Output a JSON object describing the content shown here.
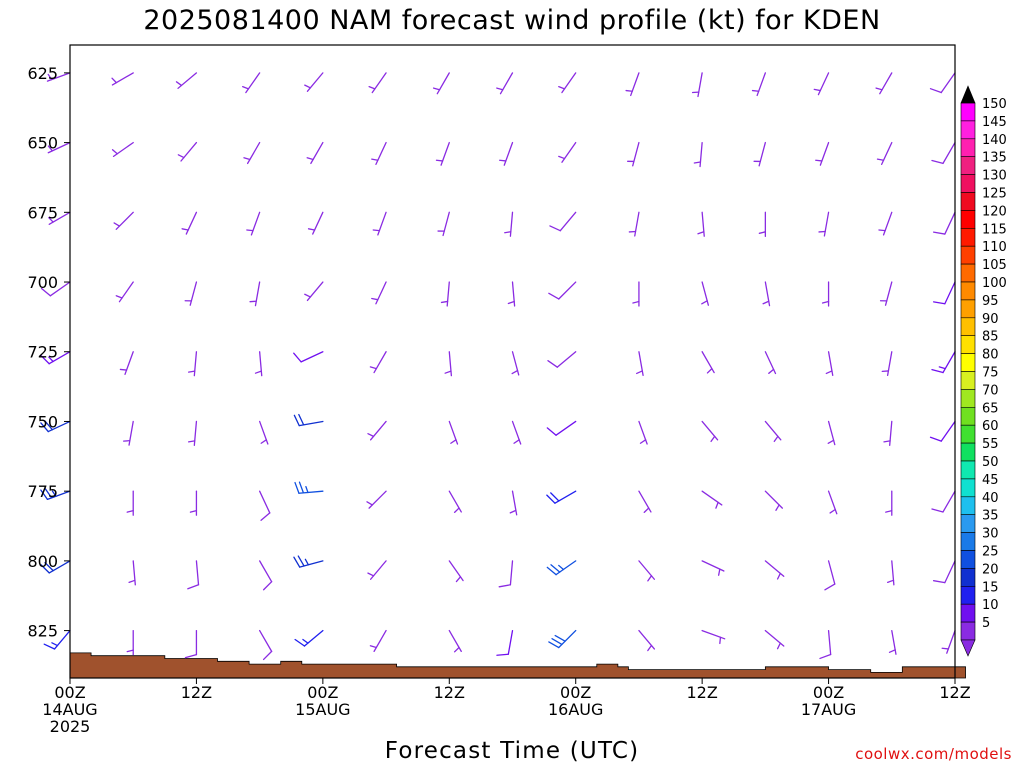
{
  "chart_data": {
    "type": "wind-barb-timeseries",
    "title": "2025081400 NAM forecast wind profile (kt) for KDEN",
    "xlabel": "Forecast Time (UTC)",
    "credit": "coolwx.com/models",
    "y_axis": {
      "units": "hPa",
      "range": [
        615,
        842
      ],
      "inverted": true,
      "ticks": [
        625,
        650,
        675,
        700,
        725,
        750,
        775,
        800,
        825
      ]
    },
    "x_axis": {
      "range": [
        0,
        84
      ],
      "unit": "forecast hour",
      "ticks": [
        {
          "hour": 0,
          "line1": "00Z",
          "line2": "14AUG",
          "line3": "2025"
        },
        {
          "hour": 12,
          "line1": "12Z",
          "line2": "",
          "line3": ""
        },
        {
          "hour": 24,
          "line1": "00Z",
          "line2": "15AUG",
          "line3": ""
        },
        {
          "hour": 36,
          "line1": "12Z",
          "line2": "",
          "line3": ""
        },
        {
          "hour": 48,
          "line1": "00Z",
          "line2": "16AUG",
          "line3": ""
        },
        {
          "hour": 60,
          "line1": "12Z",
          "line2": "",
          "line3": ""
        },
        {
          "hour": 72,
          "line1": "00Z",
          "line2": "17AUG",
          "line3": ""
        },
        {
          "hour": 84,
          "line1": "12Z",
          "line2": "",
          "line3": ""
        }
      ]
    },
    "color_scale": {
      "units": "kt",
      "levels": [
        5,
        10,
        15,
        20,
        25,
        30,
        35,
        40,
        45,
        50,
        55,
        60,
        65,
        70,
        75,
        80,
        85,
        90,
        95,
        100,
        105,
        110,
        115,
        120,
        125,
        130,
        135,
        140,
        145,
        150
      ],
      "colors": [
        "#8a2be2",
        "#7010f0",
        "#2020f0",
        "#1030d0",
        "#1050e0",
        "#1a7ae8",
        "#2a9af0",
        "#1ec0ee",
        "#10e0d0",
        "#10e8b0",
        "#10e060",
        "#40e030",
        "#70e020",
        "#a0e820",
        "#d8f020",
        "#ffff00",
        "#ffe000",
        "#ffc000",
        "#ffa000",
        "#ff8a00",
        "#ff6a00",
        "#ff4000",
        "#ff1a00",
        "#ff0000",
        "#f00a20",
        "#f01060",
        "#f02080",
        "#ff20b0",
        "#ff20e0",
        "#ff00ff"
      ]
    },
    "terrain": {
      "color": "#a0522d",
      "surface_pressure_hpa": [
        833,
        833,
        834,
        834,
        834,
        834,
        834,
        834,
        834,
        835,
        835,
        835,
        835,
        835,
        836,
        836,
        836,
        837,
        837,
        837,
        836,
        836,
        837,
        837,
        837,
        837,
        837,
        837,
        837,
        837,
        837,
        838,
        838,
        838,
        838,
        838,
        838,
        838,
        838,
        838,
        838,
        838,
        838,
        838,
        838,
        838,
        838,
        838,
        838,
        838,
        837,
        837,
        838,
        839,
        839,
        839,
        839,
        839,
        839,
        839,
        839,
        839,
        839,
        839,
        839,
        839,
        838,
        838,
        838,
        838,
        838,
        838,
        839,
        839,
        839,
        839,
        840,
        840,
        840,
        838,
        838,
        838,
        838,
        838,
        838
      ]
    },
    "wind_series": [
      {
        "hour": 0,
        "levels": [
          [
            625,
            250,
            7
          ],
          [
            650,
            245,
            7
          ],
          [
            675,
            240,
            7
          ],
          [
            700,
            235,
            9
          ],
          [
            725,
            240,
            13
          ],
          [
            750,
            245,
            22
          ],
          [
            775,
            250,
            23
          ],
          [
            800,
            240,
            22
          ],
          [
            825,
            220,
            15
          ]
        ]
      },
      {
        "hour": 6,
        "levels": [
          [
            625,
            240,
            7
          ],
          [
            650,
            235,
            7
          ],
          [
            675,
            225,
            7
          ],
          [
            700,
            215,
            7
          ],
          [
            725,
            200,
            6
          ],
          [
            750,
            190,
            5
          ],
          [
            775,
            180,
            5
          ],
          [
            800,
            175,
            5
          ],
          [
            825,
            180,
            5
          ]
        ]
      },
      {
        "hour": 12,
        "levels": [
          [
            625,
            230,
            6
          ],
          [
            650,
            220,
            6
          ],
          [
            675,
            205,
            6
          ],
          [
            700,
            195,
            6
          ],
          [
            725,
            185,
            6
          ],
          [
            750,
            185,
            6
          ],
          [
            775,
            180,
            7
          ],
          [
            800,
            175,
            8
          ],
          [
            825,
            180,
            8
          ]
        ]
      },
      {
        "hour": 18,
        "levels": [
          [
            625,
            215,
            6
          ],
          [
            650,
            210,
            6
          ],
          [
            675,
            200,
            6
          ],
          [
            700,
            190,
            6
          ],
          [
            725,
            175,
            6
          ],
          [
            750,
            160,
            7
          ],
          [
            775,
            155,
            8
          ],
          [
            800,
            150,
            9
          ],
          [
            825,
            150,
            9
          ]
        ]
      },
      {
        "hour": 24,
        "levels": [
          [
            625,
            220,
            6
          ],
          [
            650,
            210,
            6
          ],
          [
            675,
            205,
            6
          ],
          [
            700,
            220,
            7
          ],
          [
            725,
            245,
            12
          ],
          [
            750,
            260,
            22
          ],
          [
            775,
            265,
            25
          ],
          [
            800,
            255,
            23
          ],
          [
            825,
            230,
            15
          ]
        ]
      },
      {
        "hour": 30,
        "levels": [
          [
            625,
            215,
            6
          ],
          [
            650,
            205,
            6
          ],
          [
            675,
            200,
            6
          ],
          [
            700,
            205,
            6
          ],
          [
            725,
            210,
            6
          ],
          [
            750,
            220,
            6
          ],
          [
            775,
            225,
            7
          ],
          [
            800,
            220,
            6
          ],
          [
            825,
            210,
            6
          ]
        ]
      },
      {
        "hour": 36,
        "levels": [
          [
            625,
            210,
            6
          ],
          [
            650,
            200,
            6
          ],
          [
            675,
            195,
            6
          ],
          [
            700,
            185,
            6
          ],
          [
            725,
            175,
            6
          ],
          [
            750,
            160,
            6
          ],
          [
            775,
            150,
            6
          ],
          [
            800,
            145,
            6
          ],
          [
            825,
            150,
            6
          ]
        ]
      },
      {
        "hour": 42,
        "levels": [
          [
            625,
            210,
            6
          ],
          [
            650,
            200,
            6
          ],
          [
            675,
            185,
            6
          ],
          [
            700,
            175,
            6
          ],
          [
            725,
            165,
            6
          ],
          [
            750,
            160,
            6
          ],
          [
            775,
            170,
            7
          ],
          [
            800,
            185,
            9
          ],
          [
            825,
            190,
            10
          ]
        ]
      },
      {
        "hour": 48,
        "levels": [
          [
            625,
            215,
            7
          ],
          [
            650,
            215,
            7
          ],
          [
            675,
            220,
            8
          ],
          [
            700,
            225,
            8
          ],
          [
            725,
            230,
            9
          ],
          [
            750,
            235,
            12
          ],
          [
            775,
            240,
            18
          ],
          [
            800,
            235,
            25
          ],
          [
            825,
            225,
            28
          ]
        ]
      },
      {
        "hour": 54,
        "levels": [
          [
            625,
            200,
            6
          ],
          [
            650,
            195,
            6
          ],
          [
            675,
            190,
            6
          ],
          [
            700,
            180,
            6
          ],
          [
            725,
            170,
            6
          ],
          [
            750,
            160,
            6
          ],
          [
            775,
            150,
            6
          ],
          [
            800,
            140,
            6
          ],
          [
            825,
            140,
            6
          ]
        ]
      },
      {
        "hour": 60,
        "levels": [
          [
            625,
            190,
            6
          ],
          [
            650,
            185,
            6
          ],
          [
            675,
            175,
            6
          ],
          [
            700,
            165,
            6
          ],
          [
            725,
            150,
            6
          ],
          [
            750,
            140,
            6
          ],
          [
            775,
            125,
            6
          ],
          [
            800,
            115,
            6
          ],
          [
            825,
            110,
            6
          ]
        ]
      },
      {
        "hour": 66,
        "levels": [
          [
            625,
            200,
            6
          ],
          [
            650,
            195,
            6
          ],
          [
            675,
            180,
            6
          ],
          [
            700,
            170,
            6
          ],
          [
            725,
            155,
            6
          ],
          [
            750,
            140,
            6
          ],
          [
            775,
            135,
            6
          ],
          [
            800,
            130,
            6
          ],
          [
            825,
            130,
            6
          ]
        ]
      },
      {
        "hour": 72,
        "levels": [
          [
            625,
            205,
            6
          ],
          [
            650,
            200,
            6
          ],
          [
            675,
            190,
            6
          ],
          [
            700,
            180,
            6
          ],
          [
            725,
            170,
            6
          ],
          [
            750,
            165,
            6
          ],
          [
            775,
            160,
            7
          ],
          [
            800,
            165,
            8
          ],
          [
            825,
            175,
            9
          ]
        ]
      },
      {
        "hour": 78,
        "levels": [
          [
            625,
            210,
            7
          ],
          [
            650,
            205,
            7
          ],
          [
            675,
            200,
            7
          ],
          [
            700,
            195,
            7
          ],
          [
            725,
            190,
            7
          ],
          [
            750,
            185,
            7
          ],
          [
            775,
            180,
            7
          ],
          [
            800,
            175,
            7
          ],
          [
            825,
            170,
            7
          ]
        ]
      },
      {
        "hour": 84,
        "levels": [
          [
            625,
            215,
            8
          ],
          [
            650,
            210,
            8
          ],
          [
            675,
            205,
            9
          ],
          [
            700,
            205,
            11
          ],
          [
            725,
            210,
            14
          ],
          [
            750,
            215,
            12
          ],
          [
            775,
            210,
            9
          ],
          [
            800,
            205,
            8
          ],
          [
            825,
            200,
            7
          ]
        ]
      }
    ]
  }
}
